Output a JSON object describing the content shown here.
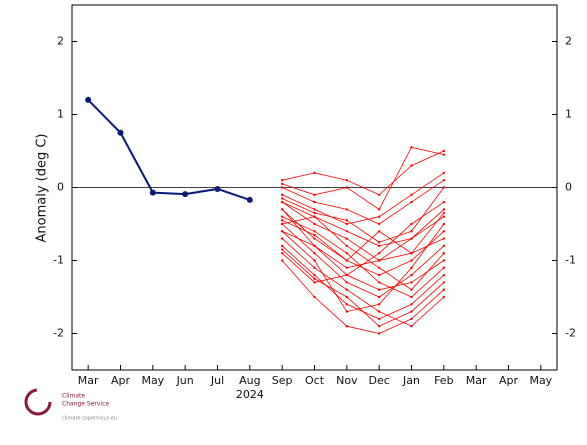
{
  "chart_data": {
    "type": "line",
    "y_label": "Anomaly (deg C)",
    "year_label": "2024",
    "categories": [
      "Mar",
      "Apr",
      "May",
      "Jun",
      "Jul",
      "Aug",
      "Sep",
      "Oct",
      "Nov",
      "Dec",
      "Jan",
      "Feb",
      "Mar",
      "Apr",
      "May"
    ],
    "ylim": [
      -2.5,
      2.5
    ],
    "yticks": [
      -2,
      -1,
      0,
      1,
      2
    ],
    "reference_line": 0,
    "series": [
      {
        "color": "#0a1a7a",
        "values": [
          1.2,
          0.75,
          -0.07,
          -0.09,
          -0.02,
          -0.17,
          null,
          null,
          null,
          null,
          null,
          null,
          null,
          null,
          null
        ]
      },
      {
        "color": "#ff0000",
        "values": [
          null,
          null,
          null,
          null,
          null,
          null,
          -0.2,
          -0.4,
          -0.6,
          -0.8,
          -0.7,
          -0.3,
          null,
          null,
          null
        ]
      },
      {
        "color": "#ff0000",
        "values": [
          null,
          null,
          null,
          null,
          null,
          null,
          -0.5,
          -0.9,
          -1.3,
          -1.5,
          -1.2,
          -0.8,
          null,
          null,
          null
        ]
      },
      {
        "color": "#ff0000",
        "values": [
          null,
          null,
          null,
          null,
          null,
          null,
          0.1,
          0.2,
          0.1,
          -0.1,
          0.3,
          0.5,
          null,
          null,
          null
        ]
      },
      {
        "color": "#ff0000",
        "values": [
          null,
          null,
          null,
          null,
          null,
          null,
          -0.8,
          -1.2,
          -1.6,
          -1.8,
          -1.6,
          -1.2,
          null,
          null,
          null
        ]
      },
      {
        "color": "#ff0000",
        "values": [
          null,
          null,
          null,
          null,
          null,
          null,
          -0.3,
          -0.7,
          -1.0,
          -1.2,
          -1.0,
          -0.6,
          null,
          null,
          null
        ]
      },
      {
        "color": "#ff0000",
        "values": [
          null,
          null,
          null,
          null,
          null,
          null,
          -1.0,
          -1.5,
          -1.9,
          -2.0,
          -1.8,
          -1.4,
          null,
          null,
          null
        ]
      },
      {
        "color": "#ff0000",
        "values": [
          null,
          null,
          null,
          null,
          null,
          null,
          0.0,
          -0.2,
          -0.3,
          -0.5,
          -0.2,
          0.1,
          null,
          null,
          null
        ]
      },
      {
        "color": "#ff0000",
        "values": [
          null,
          null,
          null,
          null,
          null,
          null,
          -0.6,
          -0.8,
          -1.1,
          -1.0,
          -0.7,
          -0.4,
          null,
          null,
          null
        ]
      },
      {
        "color": "#ff0000",
        "values": [
          null,
          null,
          null,
          null,
          null,
          null,
          -0.4,
          -0.6,
          -0.9,
          -1.3,
          -1.5,
          -1.1,
          null,
          null,
          null
        ]
      },
      {
        "color": "#ff0000",
        "values": [
          null,
          null,
          null,
          null,
          null,
          null,
          -0.1,
          -0.3,
          -0.5,
          -0.4,
          -0.1,
          0.2,
          null,
          null,
          null
        ]
      },
      {
        "color": "#ff0000",
        "values": [
          null,
          null,
          null,
          null,
          null,
          null,
          -0.7,
          -1.1,
          -1.4,
          -1.7,
          -1.9,
          -1.5,
          null,
          null,
          null
        ]
      },
      {
        "color": "#ff0000",
        "values": [
          null,
          null,
          null,
          null,
          null,
          null,
          -0.2,
          -0.5,
          -0.7,
          -1.0,
          -0.9,
          -0.7,
          null,
          null,
          null
        ]
      },
      {
        "color": "#ff0000",
        "values": [
          null,
          null,
          null,
          null,
          null,
          null,
          -0.9,
          -1.3,
          -1.2,
          -1.4,
          -1.3,
          -1.0,
          null,
          null,
          null
        ]
      },
      {
        "color": "#ff0000",
        "values": [
          null,
          null,
          null,
          null,
          null,
          null,
          0.05,
          -0.1,
          0.0,
          -0.3,
          0.55,
          0.45,
          null,
          null,
          null
        ]
      },
      {
        "color": "#ff0000",
        "values": [
          null,
          null,
          null,
          null,
          null,
          null,
          -0.3,
          -0.8,
          -1.2,
          -0.9,
          -0.5,
          -0.2,
          null,
          null,
          null
        ]
      },
      {
        "color": "#ff0000",
        "values": [
          null,
          null,
          null,
          null,
          null,
          null,
          -0.5,
          -0.4,
          -0.8,
          -1.1,
          -1.4,
          -0.9,
          null,
          null,
          null
        ]
      },
      {
        "color": "#ff0000",
        "values": [
          null,
          null,
          null,
          null,
          null,
          null,
          -0.6,
          -1.0,
          -1.7,
          -1.6,
          -1.1,
          -0.5,
          null,
          null,
          null
        ]
      },
      {
        "color": "#ff0000",
        "values": [
          null,
          null,
          null,
          null,
          null,
          null,
          -0.15,
          -0.35,
          -0.45,
          -0.75,
          -0.6,
          0.0,
          null,
          null,
          null
        ]
      },
      {
        "color": "#ff0000",
        "values": [
          null,
          null,
          null,
          null,
          null,
          null,
          -0.85,
          -1.25,
          -1.5,
          -1.9,
          -1.7,
          -1.3,
          null,
          null,
          null
        ]
      },
      {
        "color": "#ff0000",
        "values": [
          null,
          null,
          null,
          null,
          null,
          null,
          -0.45,
          -0.65,
          -1.0,
          -0.6,
          -0.9,
          -0.35,
          null,
          null,
          null
        ]
      }
    ]
  },
  "logo": {
    "line1": "Climate",
    "line2": "Change Service",
    "url": "climate.copernicus.eu"
  }
}
